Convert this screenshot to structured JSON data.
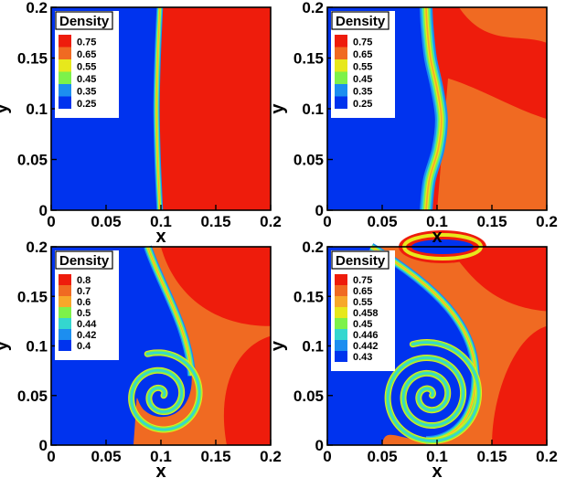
{
  "colors": {
    "light_fluid": "#0033ee",
    "heavy_fluid": "#ee1c0c",
    "mixed_region": "#f06a22",
    "band": [
      "#0033ee",
      "#1c8ef0",
      "#34d7cf",
      "#7df24a",
      "#e7e81c",
      "#f7a82a",
      "#f06a22",
      "#ee1c0c"
    ]
  },
  "chart_data": [
    {
      "type": "heatmap",
      "title": "Density",
      "xlabel": "x",
      "ylabel": "y",
      "xlim": [
        0,
        0.2
      ],
      "ylim": [
        0,
        0.2
      ],
      "xticks": [
        "0",
        "0.05",
        "0.1",
        "0.15",
        "0.2"
      ],
      "yticks": [
        "0",
        "0.05",
        "0.1",
        "0.15",
        "0.2"
      ],
      "legend": {
        "placement": "top-left",
        "levels": [
          "0.75",
          "0.65",
          "0.55",
          "0.45",
          "0.35",
          "0.25"
        ]
      },
      "interface_x_at_y": [
        [
          0,
          0.099
        ],
        [
          0.05,
          0.097
        ],
        [
          0.1,
          0.096
        ],
        [
          0.15,
          0.097
        ],
        [
          0.2,
          0.099
        ]
      ]
    },
    {
      "type": "heatmap",
      "title": "Density",
      "xlabel": "x",
      "ylabel": "y",
      "xlim": [
        0,
        0.2
      ],
      "ylim": [
        0,
        0.2
      ],
      "xticks": [
        "0",
        "0.05",
        "0.1",
        "0.15",
        "0.2"
      ],
      "yticks": [
        "0",
        "0.05",
        "0.1",
        "0.15",
        "0.2"
      ],
      "legend": {
        "placement": "top-left",
        "levels": [
          "0.75",
          "0.65",
          "0.55",
          "0.45",
          "0.35",
          "0.25"
        ]
      },
      "interface_x_at_y": [
        [
          0,
          0.09
        ],
        [
          0.03,
          0.093
        ],
        [
          0.06,
          0.101
        ],
        [
          0.09,
          0.104
        ],
        [
          0.12,
          0.1
        ],
        [
          0.15,
          0.094
        ],
        [
          0.18,
          0.091
        ],
        [
          0.2,
          0.09
        ]
      ]
    },
    {
      "type": "heatmap",
      "title": "Density",
      "xlabel": "x",
      "ylabel": "y",
      "xlim": [
        0,
        0.2
      ],
      "ylim": [
        0,
        0.2
      ],
      "xticks": [
        "0",
        "0.05",
        "0.1",
        "0.15",
        "0.2"
      ],
      "yticks": [
        "0",
        "0.05",
        "0.1",
        "0.15",
        "0.2"
      ],
      "legend": {
        "placement": "top-left",
        "levels": [
          "0.8",
          "0.7",
          "0.6",
          "0.5",
          "0.44",
          "0.42",
          "0.4"
        ]
      },
      "spiral_center": [
        0.1,
        0.05
      ]
    },
    {
      "type": "heatmap",
      "title": "Density",
      "xlabel": "x",
      "ylabel": "y",
      "xlim": [
        0,
        0.2
      ],
      "ylim": [
        0,
        0.2
      ],
      "xticks": [
        "0",
        "0.05",
        "0.1",
        "0.15",
        "0.2"
      ],
      "yticks": [
        "0",
        "0.05",
        "0.1",
        "0.15",
        "0.2"
      ],
      "legend": {
        "placement": "top-left",
        "levels": [
          "0.75",
          "0.65",
          "0.55",
          "0.458",
          "0.45",
          "0.446",
          "0.442",
          "0.43"
        ]
      },
      "spiral_center": [
        0.093,
        0.05
      ]
    }
  ]
}
